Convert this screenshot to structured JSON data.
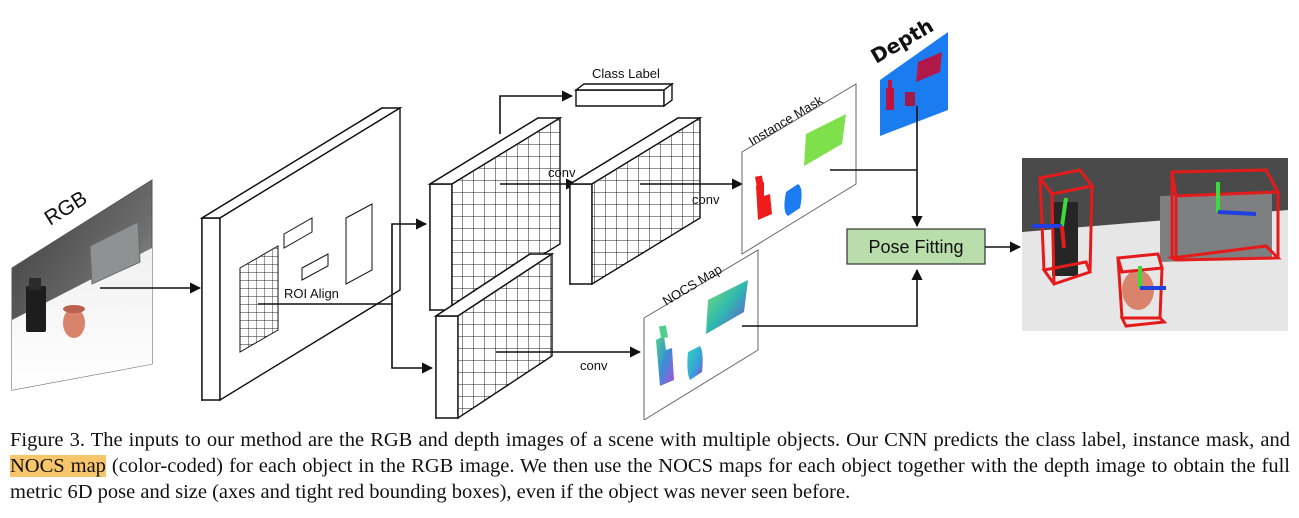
{
  "labels": {
    "rgb": "RGB",
    "roi_align": "ROI Align",
    "class_label": "Class Label",
    "conv_1": "conv",
    "conv_2": "conv",
    "conv_3": "conv",
    "instance_mask": "Instance Mask",
    "nocs_map": "NOCS Map",
    "depth": "Depth",
    "pose_fitting": "Pose Fitting"
  },
  "caption": {
    "part1": "Figure 3. The inputs to our method are the RGB and depth images of a scene with multiple objects. Our CNN predicts the class label, instance mask, and ",
    "highlight": "NOCS map",
    "part2": " (color-coded) for each object in the RGB image. We then use the NOCS maps for each object together with the depth image to obtain the full metric 6D pose and size (axes and tight red bounding boxes), even if the object was never seen before."
  },
  "colors": {
    "highlight": "#f7c56b",
    "pose_box_fill": "#b9deab",
    "depth_background": "#1b7cf0",
    "mask_red": "#ee1c1c",
    "mask_blue": "#1a7cf0",
    "mask_green": "#7ee04a",
    "bbox_red": "#e51b1b"
  }
}
